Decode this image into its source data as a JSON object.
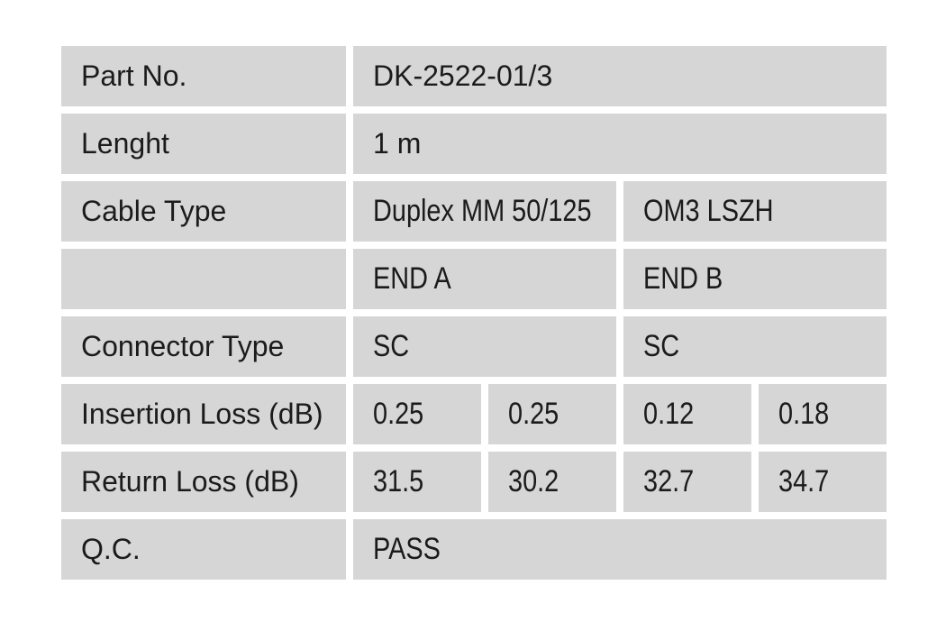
{
  "colors": {
    "page_background": "#ffffff",
    "cell_background": "#d6d6d6",
    "text": "#1b1b1b"
  },
  "rows": {
    "part_no": {
      "label": "Part No.",
      "value": "DK-2522-01/3"
    },
    "length": {
      "label": "Lenght",
      "value": "1 m"
    },
    "cable_type": {
      "label": "Cable Type",
      "value_a": "Duplex MM 50/125",
      "value_b": "OM3 LSZH"
    },
    "ends": {
      "label": "",
      "value_a": "END A",
      "value_b": "END B"
    },
    "connector": {
      "label": "Connector Type",
      "value_a": "SC",
      "value_b": "SC"
    },
    "insertion_loss": {
      "label": "Insertion Loss (dB)",
      "values": [
        "0.25",
        "0.25",
        "0.12",
        "0.18"
      ]
    },
    "return_loss": {
      "label": "Return Loss (dB)",
      "values": [
        "31.5",
        "30.2",
        "32.7",
        "34.7"
      ]
    },
    "qc": {
      "label": "Q.C.",
      "value": "PASS"
    }
  }
}
